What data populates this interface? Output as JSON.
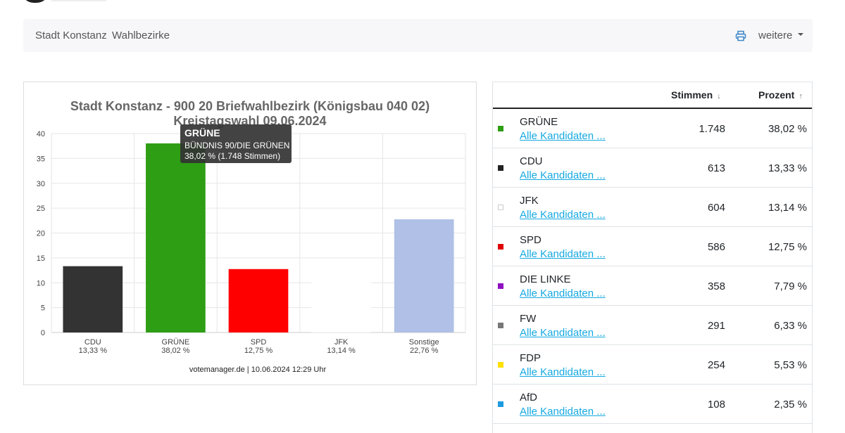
{
  "nav": {
    "items": [
      {
        "label": "Stadt Konstanz"
      },
      {
        "label": "Wahlbezirke"
      }
    ],
    "print_icon": "printer-icon",
    "more_label": "weitere"
  },
  "chart_data": {
    "type": "bar",
    "title": "Stadt Konstanz - 900 20 Briefwahlbezirk (Königsbau 040 02)",
    "subtitle": "Kreistagswahl 09.06.2024",
    "categories": [
      "CDU",
      "GRÜNE",
      "SPD",
      "JFK",
      "Sonstige"
    ],
    "category_labels": [
      "13,33 %",
      "38,02 %",
      "12,75 %",
      "13,14 %",
      "22,76 %"
    ],
    "values": [
      13.33,
      38.02,
      12.75,
      13.14,
      22.76
    ],
    "colors": [
      "#333333",
      "#2e9e14",
      "#ff0000",
      "#ffffff",
      "#b0c0e6"
    ],
    "ylim": [
      0,
      40
    ],
    "yticks": [
      0,
      5,
      10,
      15,
      20,
      25,
      30,
      35,
      40
    ],
    "grid": true,
    "footer": "votemanager.de | 10.06.2024 12:29 Uhr",
    "tooltip": {
      "title": "GRÜNE",
      "line1": "BÜNDNIS 90/DIE GRÜNEN",
      "line2": "38,02 % (1.748 Stimmen)"
    }
  },
  "table": {
    "col_votes": "Stimmen",
    "col_votes_sort": "↓",
    "col_percent": "Prozent",
    "col_percent_sort": "↑",
    "rows": [
      {
        "party": "GRÜNE",
        "link": "Alle Kandidaten ...",
        "votes": "1.748",
        "percent": "38,02 %",
        "color": "#2e9e14"
      },
      {
        "party": "CDU",
        "link": "Alle Kandidaten ...",
        "votes": "613",
        "percent": "13,33 %",
        "color": "#222222"
      },
      {
        "party": "JFK",
        "link": "Alle Kandidaten ...",
        "votes": "604",
        "percent": "13,14 %",
        "color": "#ffffff"
      },
      {
        "party": "SPD",
        "link": "Alle Kandidaten ...",
        "votes": "586",
        "percent": "12,75 %",
        "color": "#e00000"
      },
      {
        "party": "DIE LINKE",
        "link": "Alle Kandidaten ...",
        "votes": "358",
        "percent": "7,79 %",
        "color": "#8e0fc0"
      },
      {
        "party": "FW",
        "link": "Alle Kandidaten ...",
        "votes": "291",
        "percent": "6,33 %",
        "color": "#777777"
      },
      {
        "party": "FDP",
        "link": "Alle Kandidaten ...",
        "votes": "254",
        "percent": "5,53 %",
        "color": "#ffe000"
      },
      {
        "party": "AfD",
        "link": "Alle Kandidaten ...",
        "votes": "108",
        "percent": "2,35 %",
        "color": "#1e9be0"
      }
    ]
  }
}
